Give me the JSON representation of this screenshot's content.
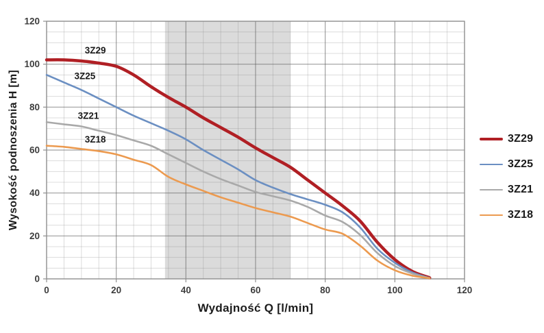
{
  "chart_data": {
    "type": "line",
    "title": "",
    "xlabel": "Wydajność Q [l/min]",
    "ylabel": "Wysokość podnoszenia H [m]",
    "xlim": [
      0,
      120
    ],
    "ylim": [
      0,
      120
    ],
    "x_ticks": [
      0,
      20,
      40,
      60,
      80,
      100,
      120
    ],
    "y_ticks": [
      0,
      20,
      40,
      60,
      80,
      100,
      120
    ],
    "minor_grid_step": 5,
    "grid": true,
    "legend_position": "right-outside",
    "highlight_band": {
      "x_start": 34,
      "x_end": 70,
      "color": "#d7d7d7",
      "opacity": 0.9
    },
    "style": {
      "grid_minor_color": "rgba(130,130,130,0.28)",
      "grid_major_color": "rgba(95,95,95,0.50)",
      "frame_color": "#8f8f8f",
      "tick_label_color": "#3d3d3d",
      "curve_label_color": "#1a1a1a"
    },
    "series": [
      {
        "name": "3Z29",
        "color": "#b01f24",
        "line_width": 4.5,
        "label": {
          "x": 14,
          "y": 105
        },
        "points": [
          [
            0,
            102
          ],
          [
            5,
            102
          ],
          [
            10,
            101.5
          ],
          [
            15,
            100.5
          ],
          [
            20,
            99
          ],
          [
            25,
            95
          ],
          [
            30,
            89.5
          ],
          [
            35,
            84.5
          ],
          [
            40,
            80
          ],
          [
            45,
            75
          ],
          [
            50,
            70.5
          ],
          [
            55,
            66
          ],
          [
            60,
            61
          ],
          [
            65,
            56.5
          ],
          [
            70,
            52
          ],
          [
            75,
            46
          ],
          [
            80,
            40
          ],
          [
            85,
            34
          ],
          [
            90,
            27
          ],
          [
            95,
            17
          ],
          [
            100,
            9
          ],
          [
            105,
            3.5
          ],
          [
            110,
            0.5
          ]
        ]
      },
      {
        "name": "3Z25",
        "color": "#6b8fc2",
        "line_width": 2.6,
        "label": {
          "x": 11,
          "y": 93
        },
        "points": [
          [
            0,
            95
          ],
          [
            5,
            91.5
          ],
          [
            10,
            88
          ],
          [
            15,
            84
          ],
          [
            20,
            80
          ],
          [
            25,
            76
          ],
          [
            30,
            72.5
          ],
          [
            35,
            69
          ],
          [
            40,
            65
          ],
          [
            45,
            60
          ],
          [
            50,
            55.5
          ],
          [
            55,
            51
          ],
          [
            60,
            46
          ],
          [
            65,
            42.5
          ],
          [
            70,
            39.5
          ],
          [
            75,
            37
          ],
          [
            80,
            34.5
          ],
          [
            85,
            31
          ],
          [
            90,
            24
          ],
          [
            95,
            14
          ],
          [
            100,
            7.5
          ],
          [
            105,
            3
          ],
          [
            110,
            0.4
          ]
        ]
      },
      {
        "name": "3Z21",
        "color": "#a9a9a9",
        "line_width": 2.6,
        "label": {
          "x": 12,
          "y": 74.5
        },
        "points": [
          [
            0,
            73
          ],
          [
            5,
            72
          ],
          [
            10,
            71
          ],
          [
            15,
            69
          ],
          [
            20,
            67
          ],
          [
            25,
            64.5
          ],
          [
            30,
            62
          ],
          [
            35,
            58
          ],
          [
            40,
            54
          ],
          [
            45,
            50
          ],
          [
            50,
            46.5
          ],
          [
            55,
            43.5
          ],
          [
            60,
            40.5
          ],
          [
            65,
            38.5
          ],
          [
            70,
            36.5
          ],
          [
            75,
            33.5
          ],
          [
            80,
            29.5
          ],
          [
            85,
            26.5
          ],
          [
            90,
            20.5
          ],
          [
            95,
            12
          ],
          [
            100,
            6
          ],
          [
            105,
            2.5
          ],
          [
            110,
            0.3
          ]
        ]
      },
      {
        "name": "3Z18",
        "color": "#ec9a4f",
        "line_width": 2.6,
        "label": {
          "x": 14,
          "y": 63.5
        },
        "points": [
          [
            0,
            62
          ],
          [
            5,
            61.5
          ],
          [
            10,
            60.5
          ],
          [
            15,
            59.5
          ],
          [
            20,
            58
          ],
          [
            25,
            55.5
          ],
          [
            30,
            53
          ],
          [
            35,
            47.5
          ],
          [
            40,
            44
          ],
          [
            45,
            41
          ],
          [
            50,
            38
          ],
          [
            55,
            35.5
          ],
          [
            60,
            33
          ],
          [
            65,
            31
          ],
          [
            70,
            29
          ],
          [
            75,
            26
          ],
          [
            80,
            23
          ],
          [
            85,
            21
          ],
          [
            90,
            15.5
          ],
          [
            95,
            8.5
          ],
          [
            100,
            4
          ],
          [
            105,
            1.5
          ],
          [
            110,
            0.3
          ]
        ]
      }
    ]
  }
}
